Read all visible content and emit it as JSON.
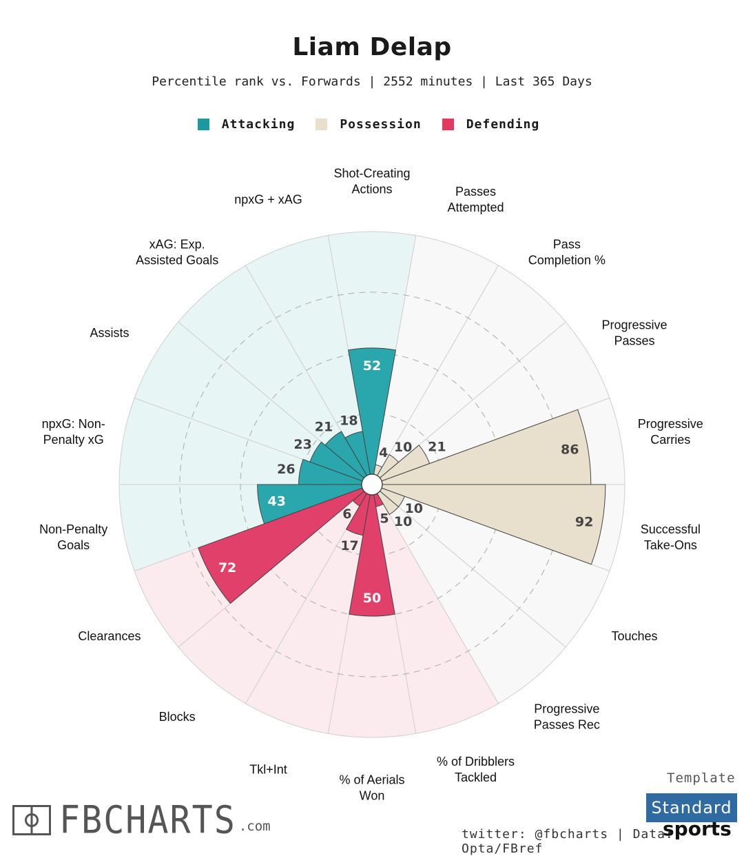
{
  "header": {
    "title": "Liam Delap",
    "subtitle": "Percentile rank vs. Forwards | 2552 minutes | Last 365 Days"
  },
  "legend": [
    {
      "label": "Attacking",
      "color": "#1aa0a6"
    },
    {
      "label": "Possession",
      "color": "#e8e0cc"
    },
    {
      "label": "Defending",
      "color": "#e23a5f"
    }
  ],
  "chart_data": {
    "type": "radial-bar",
    "title": "Liam Delap",
    "subtitle": "Percentile rank vs. Forwards | 2552 minutes | Last 365 Days",
    "rlim": [
      0,
      100
    ],
    "grid": true,
    "legend_position": "top",
    "categories": [
      "Shot-Creating\nActions",
      "Passes\nAttempted",
      "Pass\nCompletion %",
      "Progressive\nPasses",
      "Progressive\nCarries",
      "Successful\nTake-Ons",
      "Touches",
      "Progressive\nPasses Rec",
      "% of Dribblers\nTackled",
      "% of Aerials\nWon",
      "Tkl+Int",
      "Blocks",
      "Clearances",
      "Non-Penalty\nGoals",
      "npxG: Non-\nPenalty xG",
      "Assists",
      "xAG: Exp.\nAssisted Goals",
      "npxG + xAG"
    ],
    "values": [
      52,
      4,
      10,
      21,
      86,
      92,
      10,
      10,
      5,
      50,
      17,
      6,
      72,
      43,
      26,
      23,
      21,
      18
    ],
    "groups": [
      "Attacking",
      "Possession",
      "Possession",
      "Possession",
      "Possession",
      "Possession",
      "Possession",
      "Possession",
      "Defending",
      "Defending",
      "Defending",
      "Defending",
      "Defending",
      "Attacking",
      "Attacking",
      "Attacking",
      "Attacking",
      "Attacking"
    ],
    "colors": {
      "Attacking": "#2aa7ad",
      "Possession": "#e8e0cc",
      "Defending": "#e0406a",
      "Attacking_bg": "#e8f5f5",
      "Possession_bg": "#f8f8f8",
      "Defending_bg": "#fcebee"
    }
  },
  "footer": {
    "logo_text": "FBCHARTS",
    "logo_suffix": ".com",
    "credit": "twitter: @fbcharts | Data: Opta/FBref",
    "template_label": "Template",
    "template_badge": "Standard",
    "template_sub": "sports"
  }
}
